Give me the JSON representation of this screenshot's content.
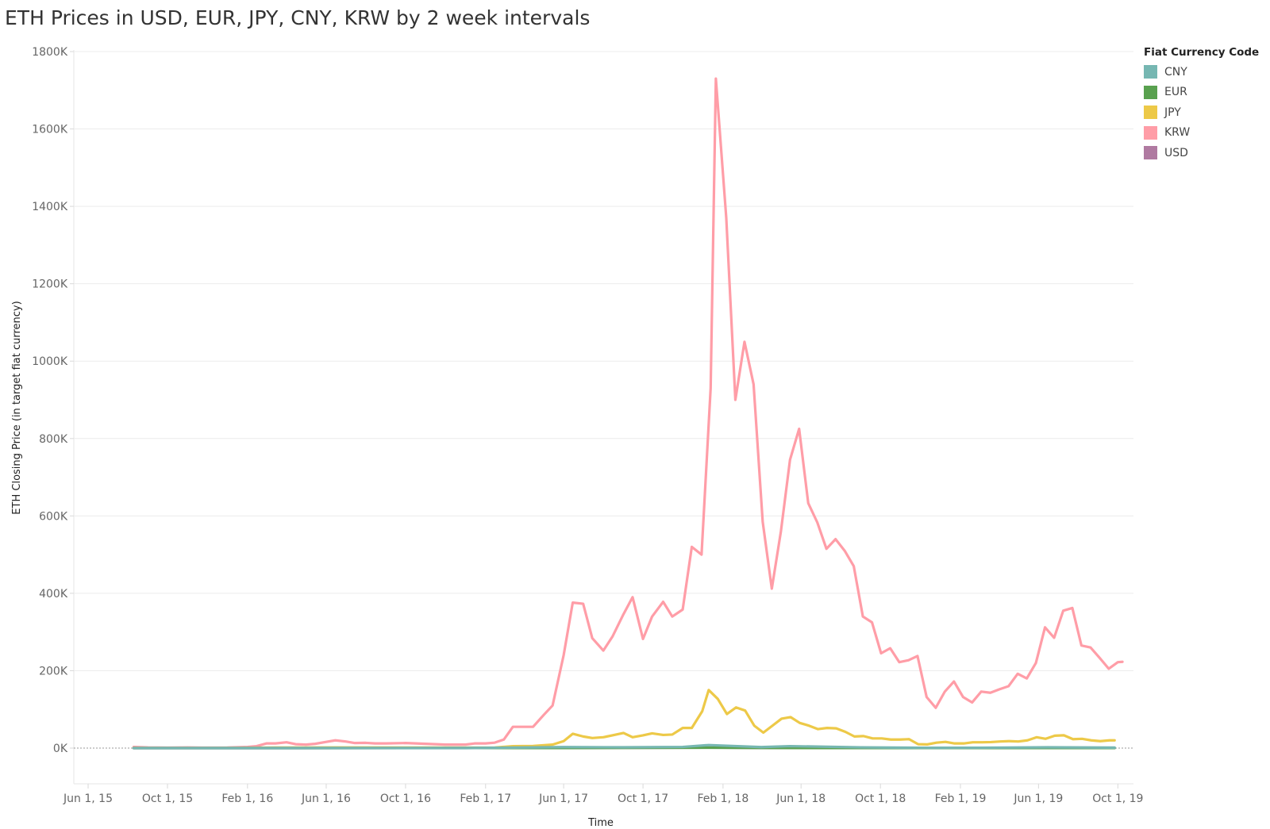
{
  "chart_data": {
    "type": "line",
    "title": "ETH Prices in USD, EUR, JPY, CNY, KRW by 2 week intervals",
    "xlabel": "Time",
    "ylabel": "ETH Closing Price (in target fiat currency)",
    "ylim": [
      -90000,
      1800000
    ],
    "yticks": [
      0,
      200000,
      400000,
      600000,
      800000,
      1000000,
      1200000,
      1400000,
      1600000,
      1800000
    ],
    "ytick_labels": [
      "0K",
      "200K",
      "400K",
      "600K",
      "800K",
      "1000K",
      "1200K",
      "1400K",
      "1600K",
      "1800K"
    ],
    "xlim": [
      "2015-05-10",
      "2019-10-25"
    ],
    "xticks": [
      "2015-06-01",
      "2015-10-01",
      "2016-02-01",
      "2016-06-01",
      "2016-10-01",
      "2017-02-01",
      "2017-06-01",
      "2017-10-01",
      "2018-02-01",
      "2018-06-01",
      "2018-10-01",
      "2019-02-01",
      "2019-06-01",
      "2019-10-01"
    ],
    "xtick_labels": [
      "Jun 1, 15",
      "Oct 1, 15",
      "Feb 1, 16",
      "Jun 1, 16",
      "Oct 1, 16",
      "Feb 1, 17",
      "Jun 1, 17",
      "Oct 1, 17",
      "Feb 1, 18",
      "Jun 1, 18",
      "Oct 1, 18",
      "Feb 1, 19",
      "Jun 1, 19",
      "Oct 1, 19"
    ],
    "grid": true,
    "legend_title": "Fiat Currency Code",
    "legend_position": "top-right",
    "series": [
      {
        "name": "CNY",
        "color": "#76b7b2",
        "points": [
          [
            "2015-08-10",
            19
          ],
          [
            "2016-01-01",
            6
          ],
          [
            "2016-06-01",
            90
          ],
          [
            "2017-01-01",
            60
          ],
          [
            "2017-06-01",
            2500
          ],
          [
            "2017-09-01",
            2000
          ],
          [
            "2017-12-01",
            3000
          ],
          [
            "2018-01-10",
            7800
          ],
          [
            "2018-04-01",
            2600
          ],
          [
            "2018-05-15",
            5000
          ],
          [
            "2018-09-01",
            1900
          ],
          [
            "2018-12-15",
            600
          ],
          [
            "2019-03-01",
            900
          ],
          [
            "2019-06-15",
            2100
          ],
          [
            "2019-09-26",
            1200
          ]
        ]
      },
      {
        "name": "EUR",
        "color": "#59a14f",
        "points": [
          [
            "2015-08-10",
            3
          ],
          [
            "2016-06-01",
            12
          ],
          [
            "2017-06-01",
            300
          ],
          [
            "2018-01-10",
            1050
          ],
          [
            "2018-04-01",
            350
          ],
          [
            "2018-09-01",
            250
          ],
          [
            "2018-12-15",
            80
          ],
          [
            "2019-06-15",
            270
          ],
          [
            "2019-09-26",
            150
          ]
        ]
      },
      {
        "name": "JPY",
        "color": "#edc948",
        "points": [
          [
            "2015-08-10",
            300
          ],
          [
            "2015-10-01",
            100
          ],
          [
            "2016-01-15",
            200
          ],
          [
            "2016-03-15",
            1200
          ],
          [
            "2016-06-15",
            1600
          ],
          [
            "2016-10-01",
            1200
          ],
          [
            "2017-01-01",
            1000
          ],
          [
            "2017-02-15",
            1300
          ],
          [
            "2017-03-15",
            5000
          ],
          [
            "2017-04-15",
            5500
          ],
          [
            "2017-05-15",
            9000
          ],
          [
            "2017-06-01",
            18000
          ],
          [
            "2017-06-15",
            37000
          ],
          [
            "2017-07-01",
            30000
          ],
          [
            "2017-07-15",
            26000
          ],
          [
            "2017-08-01",
            28000
          ],
          [
            "2017-08-15",
            33000
          ],
          [
            "2017-09-01",
            39000
          ],
          [
            "2017-09-15",
            28000
          ],
          [
            "2017-10-01",
            33000
          ],
          [
            "2017-10-15",
            38000
          ],
          [
            "2017-11-01",
            34000
          ],
          [
            "2017-11-15",
            35000
          ],
          [
            "2017-12-01",
            52000
          ],
          [
            "2017-12-15",
            52000
          ],
          [
            "2017-12-31",
            95000
          ],
          [
            "2018-01-10",
            150000
          ],
          [
            "2018-01-24",
            127000
          ],
          [
            "2018-02-07",
            88000
          ],
          [
            "2018-02-21",
            105000
          ],
          [
            "2018-03-07",
            97000
          ],
          [
            "2018-03-21",
            58000
          ],
          [
            "2018-04-04",
            40000
          ],
          [
            "2018-04-18",
            58000
          ],
          [
            "2018-05-02",
            76000
          ],
          [
            "2018-05-16",
            80000
          ],
          [
            "2018-05-30",
            65000
          ],
          [
            "2018-06-13",
            58000
          ],
          [
            "2018-06-27",
            49000
          ],
          [
            "2018-07-11",
            52000
          ],
          [
            "2018-07-25",
            51000
          ],
          [
            "2018-08-08",
            42000
          ],
          [
            "2018-08-22",
            30000
          ],
          [
            "2018-09-05",
            31000
          ],
          [
            "2018-09-19",
            25000
          ],
          [
            "2018-10-03",
            25000
          ],
          [
            "2018-10-17",
            22000
          ],
          [
            "2018-10-31",
            22000
          ],
          [
            "2018-11-14",
            23000
          ],
          [
            "2018-11-28",
            10000
          ],
          [
            "2018-12-12",
            9500
          ],
          [
            "2018-12-26",
            14000
          ],
          [
            "2019-01-09",
            16000
          ],
          [
            "2019-01-23",
            12000
          ],
          [
            "2019-02-06",
            12000
          ],
          [
            "2019-02-20",
            15000
          ],
          [
            "2019-03-06",
            15000
          ],
          [
            "2019-03-20",
            15500
          ],
          [
            "2019-04-03",
            17000
          ],
          [
            "2019-04-17",
            18000
          ],
          [
            "2019-05-01",
            17000
          ],
          [
            "2019-05-15",
            20000
          ],
          [
            "2019-05-29",
            28000
          ],
          [
            "2019-06-12",
            24000
          ],
          [
            "2019-06-26",
            32000
          ],
          [
            "2019-07-10",
            33000
          ],
          [
            "2019-07-24",
            23000
          ],
          [
            "2019-08-07",
            24000
          ],
          [
            "2019-08-21",
            20000
          ],
          [
            "2019-09-04",
            18000
          ],
          [
            "2019-09-18",
            20000
          ],
          [
            "2019-09-26",
            20000
          ]
        ]
      },
      {
        "name": "KRW",
        "color": "#ff9da7",
        "points": [
          [
            "2015-08-10",
            3000
          ],
          [
            "2015-09-01",
            1500
          ],
          [
            "2015-10-01",
            1000
          ],
          [
            "2015-11-01",
            1500
          ],
          [
            "2015-12-01",
            1000
          ],
          [
            "2016-01-01",
            1200
          ],
          [
            "2016-02-01",
            3000
          ],
          [
            "2016-02-15",
            5000
          ],
          [
            "2016-03-01",
            12000
          ],
          [
            "2016-03-15",
            12000
          ],
          [
            "2016-04-01",
            15000
          ],
          [
            "2016-04-15",
            10000
          ],
          [
            "2016-05-01",
            9000
          ],
          [
            "2016-05-15",
            11000
          ],
          [
            "2016-06-01",
            16000
          ],
          [
            "2016-06-15",
            20000
          ],
          [
            "2016-07-01",
            17000
          ],
          [
            "2016-07-15",
            13000
          ],
          [
            "2016-08-01",
            13500
          ],
          [
            "2016-08-15",
            12000
          ],
          [
            "2016-09-01",
            12000
          ],
          [
            "2016-10-01",
            13000
          ],
          [
            "2016-11-01",
            11000
          ],
          [
            "2016-12-01",
            9000
          ],
          [
            "2016-12-15",
            9000
          ],
          [
            "2017-01-01",
            9000
          ],
          [
            "2017-01-15",
            12000
          ],
          [
            "2017-02-01",
            12000
          ],
          [
            "2017-02-15",
            14000
          ],
          [
            "2017-03-01",
            22000
          ],
          [
            "2017-03-15",
            55000
          ],
          [
            "2017-04-01",
            55000
          ],
          [
            "2017-04-15",
            55000
          ],
          [
            "2017-05-01",
            85000
          ],
          [
            "2017-05-15",
            110000
          ],
          [
            "2017-06-01",
            240000
          ],
          [
            "2017-06-15",
            376000
          ],
          [
            "2017-07-01",
            373000
          ],
          [
            "2017-07-15",
            284000
          ],
          [
            "2017-08-01",
            252000
          ],
          [
            "2017-08-15",
            288000
          ],
          [
            "2017-09-01",
            346000
          ],
          [
            "2017-09-15",
            390000
          ],
          [
            "2017-10-01",
            282000
          ],
          [
            "2017-10-15",
            340000
          ],
          [
            "2017-11-01",
            378000
          ],
          [
            "2017-11-15",
            340000
          ],
          [
            "2017-12-01",
            358000
          ],
          [
            "2017-12-15",
            520000
          ],
          [
            "2017-12-30",
            500000
          ],
          [
            "2018-01-13",
            930000
          ],
          [
            "2018-01-21",
            1730000
          ],
          [
            "2018-02-06",
            1370000
          ],
          [
            "2018-02-20",
            900000
          ],
          [
            "2018-03-06",
            1050000
          ],
          [
            "2018-03-20",
            940000
          ],
          [
            "2018-04-03",
            585000
          ],
          [
            "2018-04-17",
            412000
          ],
          [
            "2018-05-01",
            560000
          ],
          [
            "2018-05-15",
            745000
          ],
          [
            "2018-05-29",
            825000
          ],
          [
            "2018-06-12",
            633000
          ],
          [
            "2018-06-26",
            583000
          ],
          [
            "2018-07-10",
            515000
          ],
          [
            "2018-07-24",
            540000
          ],
          [
            "2018-08-07",
            510000
          ],
          [
            "2018-08-21",
            470000
          ],
          [
            "2018-09-04",
            340000
          ],
          [
            "2018-09-18",
            325000
          ],
          [
            "2018-10-02",
            245000
          ],
          [
            "2018-10-16",
            258000
          ],
          [
            "2018-10-30",
            222000
          ],
          [
            "2018-11-13",
            227000
          ],
          [
            "2018-11-27",
            238000
          ],
          [
            "2018-12-11",
            132000
          ],
          [
            "2018-12-25",
            104000
          ],
          [
            "2019-01-08",
            146000
          ],
          [
            "2019-01-22",
            172000
          ],
          [
            "2019-02-05",
            132000
          ],
          [
            "2019-02-19",
            118000
          ],
          [
            "2019-03-05",
            146000
          ],
          [
            "2019-03-19",
            143000
          ],
          [
            "2019-04-02",
            152000
          ],
          [
            "2019-04-16",
            160000
          ],
          [
            "2019-04-30",
            192000
          ],
          [
            "2019-05-14",
            180000
          ],
          [
            "2019-05-28",
            220000
          ],
          [
            "2019-06-11",
            312000
          ],
          [
            "2019-06-25",
            285000
          ],
          [
            "2019-07-09",
            355000
          ],
          [
            "2019-07-23",
            362000
          ],
          [
            "2019-08-06",
            265000
          ],
          [
            "2019-08-20",
            260000
          ],
          [
            "2019-09-03",
            233000
          ],
          [
            "2019-09-17",
            205000
          ],
          [
            "2019-10-01",
            222000
          ],
          [
            "2019-10-08",
            223000
          ]
        ]
      },
      {
        "name": "USD",
        "color": "#b07aa1",
        "points": [
          [
            "2015-08-10",
            3
          ],
          [
            "2016-06-01",
            13
          ],
          [
            "2017-06-01",
            330
          ],
          [
            "2018-01-10",
            1380
          ],
          [
            "2018-04-01",
            400
          ],
          [
            "2018-09-01",
            280
          ],
          [
            "2018-12-15",
            90
          ],
          [
            "2019-06-15",
            300
          ],
          [
            "2019-09-26",
            175
          ]
        ]
      }
    ]
  }
}
